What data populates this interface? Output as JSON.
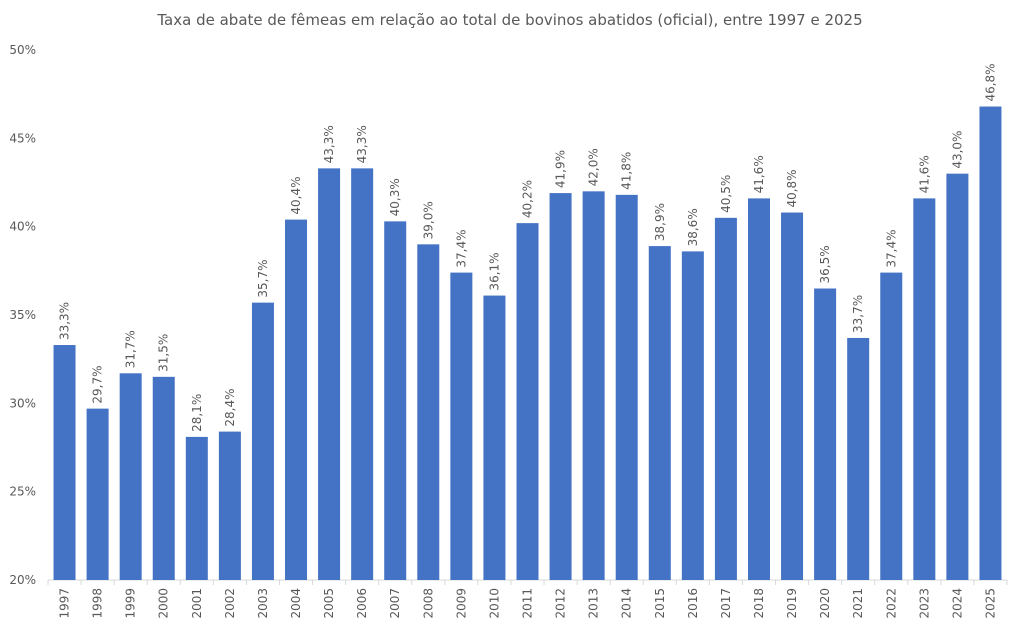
{
  "chart_data": {
    "type": "bar",
    "title": "Taxa de abate de fêmeas em relação ao total de bovinos abatidos (oficial), entre 1997 e 2025",
    "xlabel": "",
    "ylabel": "",
    "ylim": [
      20,
      50
    ],
    "yticks": [
      "20%",
      "25%",
      "30%",
      "35%",
      "40%",
      "45%",
      "50%"
    ],
    "ytick_values": [
      20,
      25,
      30,
      35,
      40,
      45,
      50
    ],
    "grid": false,
    "bar_color": "#4472C4",
    "categories": [
      "1997",
      "1998",
      "1999",
      "2000",
      "2001",
      "2002",
      "2003",
      "2004",
      "2005",
      "2006",
      "2007",
      "2008",
      "2009",
      "2010",
      "2011",
      "2012",
      "2013",
      "2014",
      "2015",
      "2016",
      "2017",
      "2018",
      "2019",
      "2020",
      "2021",
      "2022",
      "2023",
      "2024",
      "2025"
    ],
    "values": [
      33.3,
      29.7,
      31.7,
      31.5,
      28.1,
      28.4,
      35.7,
      40.4,
      43.3,
      43.3,
      40.3,
      39.0,
      37.4,
      36.1,
      40.2,
      41.9,
      42.0,
      41.8,
      38.9,
      38.6,
      40.5,
      41.6,
      40.8,
      36.5,
      33.7,
      37.4,
      41.6,
      43.0,
      46.8
    ],
    "data_labels": [
      "33,3%",
      "29,7%",
      "31,7%",
      "31,5%",
      "28,1%",
      "28,4%",
      "35,7%",
      "40,4%",
      "43,3%",
      "43,3%",
      "40,3%",
      "39,0%",
      "37,4%",
      "36,1%",
      "40,2%",
      "41,9%",
      "42,0%",
      "41,8%",
      "38,9%",
      "38,6%",
      "40,5%",
      "41,6%",
      "40,8%",
      "36,5%",
      "33,7%",
      "37,4%",
      "41,6%",
      "43,0%",
      "46,8%"
    ]
  }
}
